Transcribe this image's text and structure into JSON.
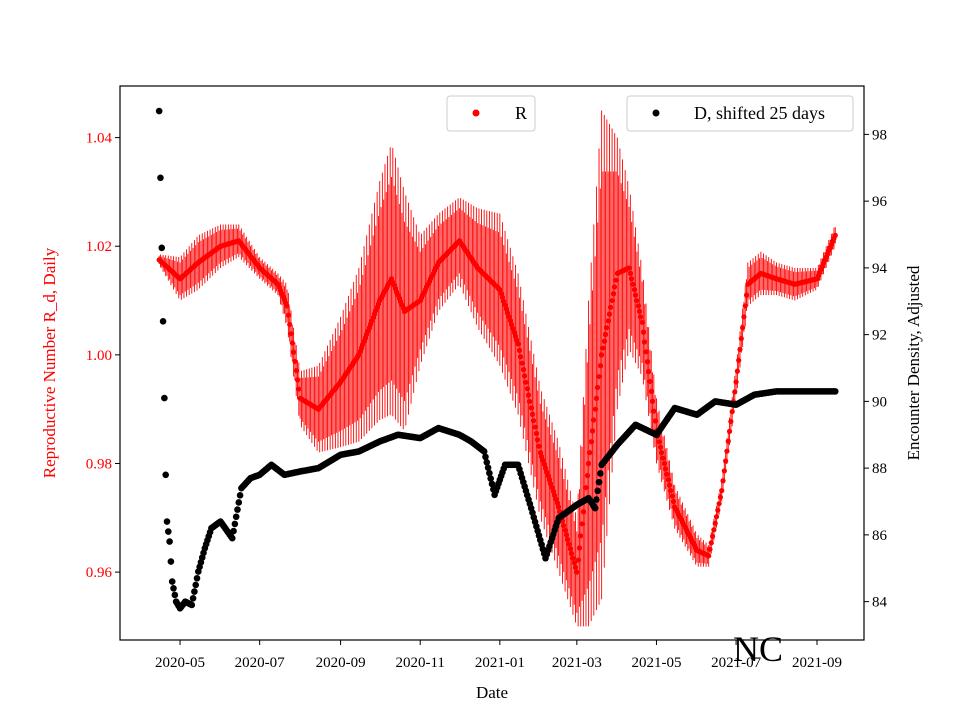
{
  "chart_data": {
    "type": "scatter",
    "xlabel": "Date",
    "ylabel_left": "Reproductive Number R_d, Daily",
    "ylabel_right": "Encounter Density, Adjusted",
    "annotation": "NC",
    "x_ticks": [
      "2020-05",
      "2020-07",
      "2020-09",
      "2020-11",
      "2021-01",
      "2021-03",
      "2021-05",
      "2021-07",
      "2021-09"
    ],
    "x_range": [
      "2020-03-16",
      "2021-10-07"
    ],
    "ylim_left": [
      0.9475,
      1.0495
    ],
    "yticks_left": [
      "0.96",
      "0.98",
      "1.00",
      "1.02",
      "1.04"
    ],
    "ylim_right": [
      82.85,
      99.45
    ],
    "yticks_right": [
      "84",
      "86",
      "88",
      "90",
      "92",
      "94",
      "96",
      "98"
    ],
    "colors": {
      "R": "#ff0000",
      "D": "#000000",
      "left_axis_text": "#ff0000",
      "right_axis_text": "#000000"
    },
    "series": [
      {
        "name": "R",
        "axis": "left",
        "color": "#ff0000",
        "marker": "circle",
        "x": [
          "2020-04-15",
          "2020-05-01",
          "2020-05-15",
          "2020-06-01",
          "2020-06-15",
          "2020-07-01",
          "2020-07-15",
          "2020-07-22",
          "2020-08-01",
          "2020-08-15",
          "2020-09-01",
          "2020-09-15",
          "2020-10-01",
          "2020-10-10",
          "2020-10-20",
          "2020-11-01",
          "2020-11-15",
          "2020-12-01",
          "2020-12-15",
          "2021-01-01",
          "2021-01-15",
          "2021-02-01",
          "2021-02-15",
          "2021-03-01",
          "2021-03-10",
          "2021-03-20",
          "2021-04-01",
          "2021-04-10",
          "2021-04-20",
          "2021-05-01",
          "2021-05-15",
          "2021-06-01",
          "2021-06-10",
          "2021-06-20",
          "2021-07-01",
          "2021-07-10",
          "2021-07-20",
          "2021-08-01",
          "2021-08-15",
          "2021-09-01",
          "2021-09-15"
        ],
        "values": [
          1.0175,
          1.014,
          1.017,
          1.02,
          1.021,
          1.016,
          1.013,
          1.009,
          0.992,
          0.99,
          0.995,
          1.0,
          1.01,
          1.014,
          1.008,
          1.01,
          1.017,
          1.021,
          1.016,
          1.012,
          1.002,
          0.982,
          0.972,
          0.96,
          0.98,
          1.0,
          1.015,
          1.016,
          1.006,
          0.986,
          0.972,
          0.964,
          0.963,
          0.975,
          0.995,
          1.013,
          1.015,
          1.014,
          1.013,
          1.014,
          1.022
        ],
        "error": [
          0.001,
          0.004,
          0.005,
          0.004,
          0.003,
          0.002,
          0.002,
          0.004,
          0.005,
          0.008,
          0.012,
          0.016,
          0.022,
          0.025,
          0.022,
          0.012,
          0.009,
          0.008,
          0.011,
          0.014,
          0.013,
          0.012,
          0.012,
          0.01,
          0.03,
          0.045,
          0.025,
          0.015,
          0.01,
          0.006,
          0.004,
          0.003,
          0.002,
          0.002,
          0.003,
          0.004,
          0.004,
          0.003,
          0.003,
          0.002,
          0.002
        ]
      },
      {
        "name": "D, shifted 25 days",
        "axis": "right",
        "color": "#000000",
        "marker": "circle",
        "x": [
          "2020-04-15",
          "2020-04-16",
          "2020-04-17",
          "2020-04-18",
          "2020-04-19",
          "2020-04-20",
          "2020-04-21",
          "2020-04-23",
          "2020-04-25",
          "2020-04-28",
          "2020-05-01",
          "2020-05-05",
          "2020-05-10",
          "2020-05-15",
          "2020-05-20",
          "2020-05-25",
          "2020-06-01",
          "2020-06-10",
          "2020-06-17",
          "2020-06-24",
          "2020-07-01",
          "2020-07-10",
          "2020-07-20",
          "2020-08-01",
          "2020-08-15",
          "2020-09-01",
          "2020-09-15",
          "2020-10-01",
          "2020-10-15",
          "2020-11-01",
          "2020-11-15",
          "2020-12-01",
          "2020-12-10",
          "2020-12-20",
          "2020-12-28",
          "2021-01-05",
          "2021-01-15",
          "2021-01-25",
          "2021-02-05",
          "2021-02-15",
          "2021-03-01",
          "2021-03-10",
          "2021-03-15",
          "2021-03-20",
          "2021-04-01",
          "2021-04-15",
          "2021-05-01",
          "2021-05-15",
          "2021-06-01",
          "2021-06-15",
          "2021-07-01",
          "2021-07-15",
          "2021-08-01",
          "2021-08-15",
          "2021-09-01",
          "2021-09-15"
        ],
        "values": [
          98.7,
          96.7,
          94.6,
          92.4,
          90.1,
          87.8,
          86.4,
          85.8,
          84.6,
          84.0,
          83.8,
          84.0,
          83.9,
          84.9,
          85.6,
          86.2,
          86.4,
          85.9,
          87.4,
          87.7,
          87.8,
          88.1,
          87.8,
          87.9,
          88.0,
          88.4,
          88.5,
          88.8,
          89.0,
          88.9,
          89.2,
          89.0,
          88.8,
          88.5,
          87.2,
          88.1,
          88.1,
          86.8,
          85.3,
          86.5,
          86.9,
          87.1,
          86.8,
          88.1,
          88.7,
          89.3,
          89.0,
          89.8,
          89.6,
          90.0,
          89.9,
          90.2,
          90.3,
          90.3,
          90.3,
          90.3
        ]
      }
    ]
  }
}
